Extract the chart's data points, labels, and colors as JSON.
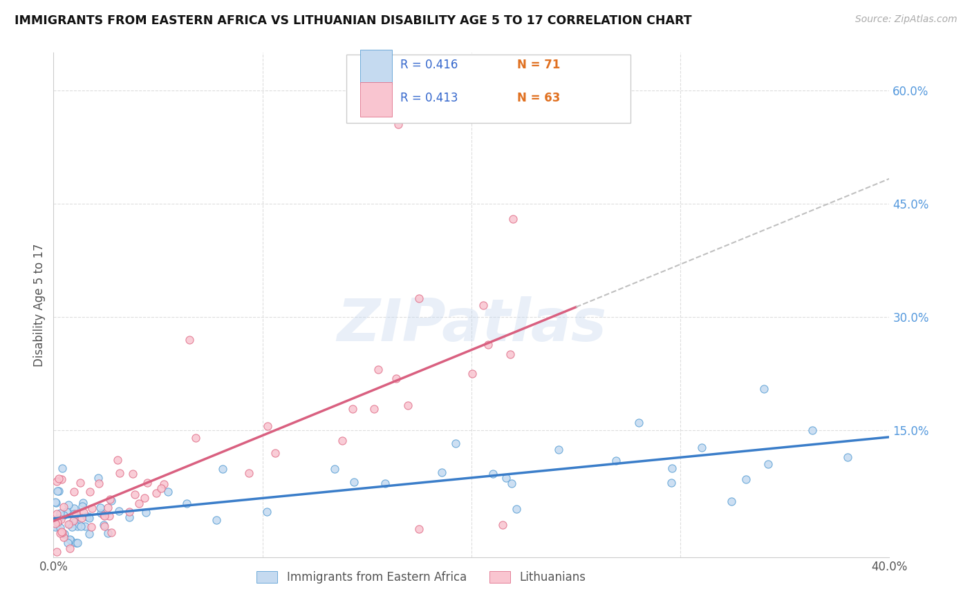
{
  "title": "IMMIGRANTS FROM EASTERN AFRICA VS LITHUANIAN DISABILITY AGE 5 TO 17 CORRELATION CHART",
  "source": "Source: ZipAtlas.com",
  "ylabel": "Disability Age 5 to 17",
  "xlim": [
    0.0,
    0.4
  ],
  "ylim": [
    -0.018,
    0.65
  ],
  "yticks_right": [
    0.15,
    0.3,
    0.45,
    0.6
  ],
  "ytick_labels_right": [
    "15.0%",
    "30.0%",
    "45.0%",
    "60.0%"
  ],
  "blue_R": "0.416",
  "blue_N": "71",
  "pink_R": "0.413",
  "pink_N": "63",
  "blue_dot_face": "#c5daf0",
  "blue_dot_edge": "#5a9fd4",
  "pink_dot_face": "#f9c5d0",
  "pink_dot_edge": "#e0708a",
  "blue_line_color": "#3a7dc9",
  "pink_line_color": "#d96080",
  "gray_dash_color": "#c0c0c0",
  "legend_blue_label": "Immigrants from Eastern Africa",
  "legend_pink_label": "Lithuanians",
  "watermark_text": "ZIPatlas",
  "title_color": "#111111",
  "source_color": "#aaaaaa",
  "axis_tick_color": "#5599dd",
  "N_color": "#e08020",
  "label_color": "#555555",
  "grid_color": "#dddddd",
  "legend_R_color": "#3366cc",
  "legend_N_color": "#e07020"
}
